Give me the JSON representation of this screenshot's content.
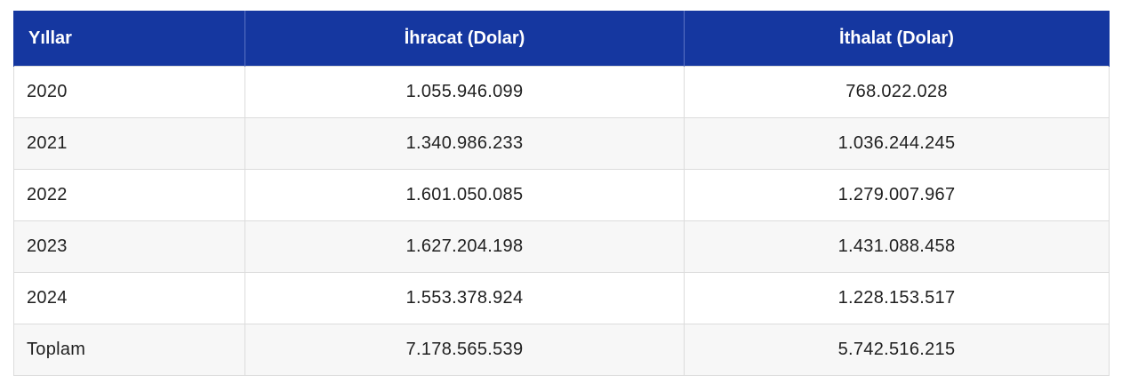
{
  "table": {
    "headers": [
      "Yıllar",
      "İhracat (Dolar)",
      "İthalat (Dolar)"
    ],
    "rows": [
      [
        "2020",
        "1.055.946.099",
        "768.022.028"
      ],
      [
        "2021",
        "1.340.986.233",
        "1.036.244.245"
      ],
      [
        "2022",
        "1.601.050.085",
        "1.279.007.967"
      ],
      [
        "2023",
        "1.627.204.198",
        "1.431.088.458"
      ],
      [
        "2024",
        "1.553.378.924",
        "1.228.153.517"
      ],
      [
        "Toplam",
        "7.178.565.539",
        "5.742.516.215"
      ]
    ]
  },
  "colors": {
    "header_background": "#1537a0",
    "header_text": "#ffffff",
    "row_alt_background": "#f7f7f7",
    "border": "#dcdcdc"
  }
}
